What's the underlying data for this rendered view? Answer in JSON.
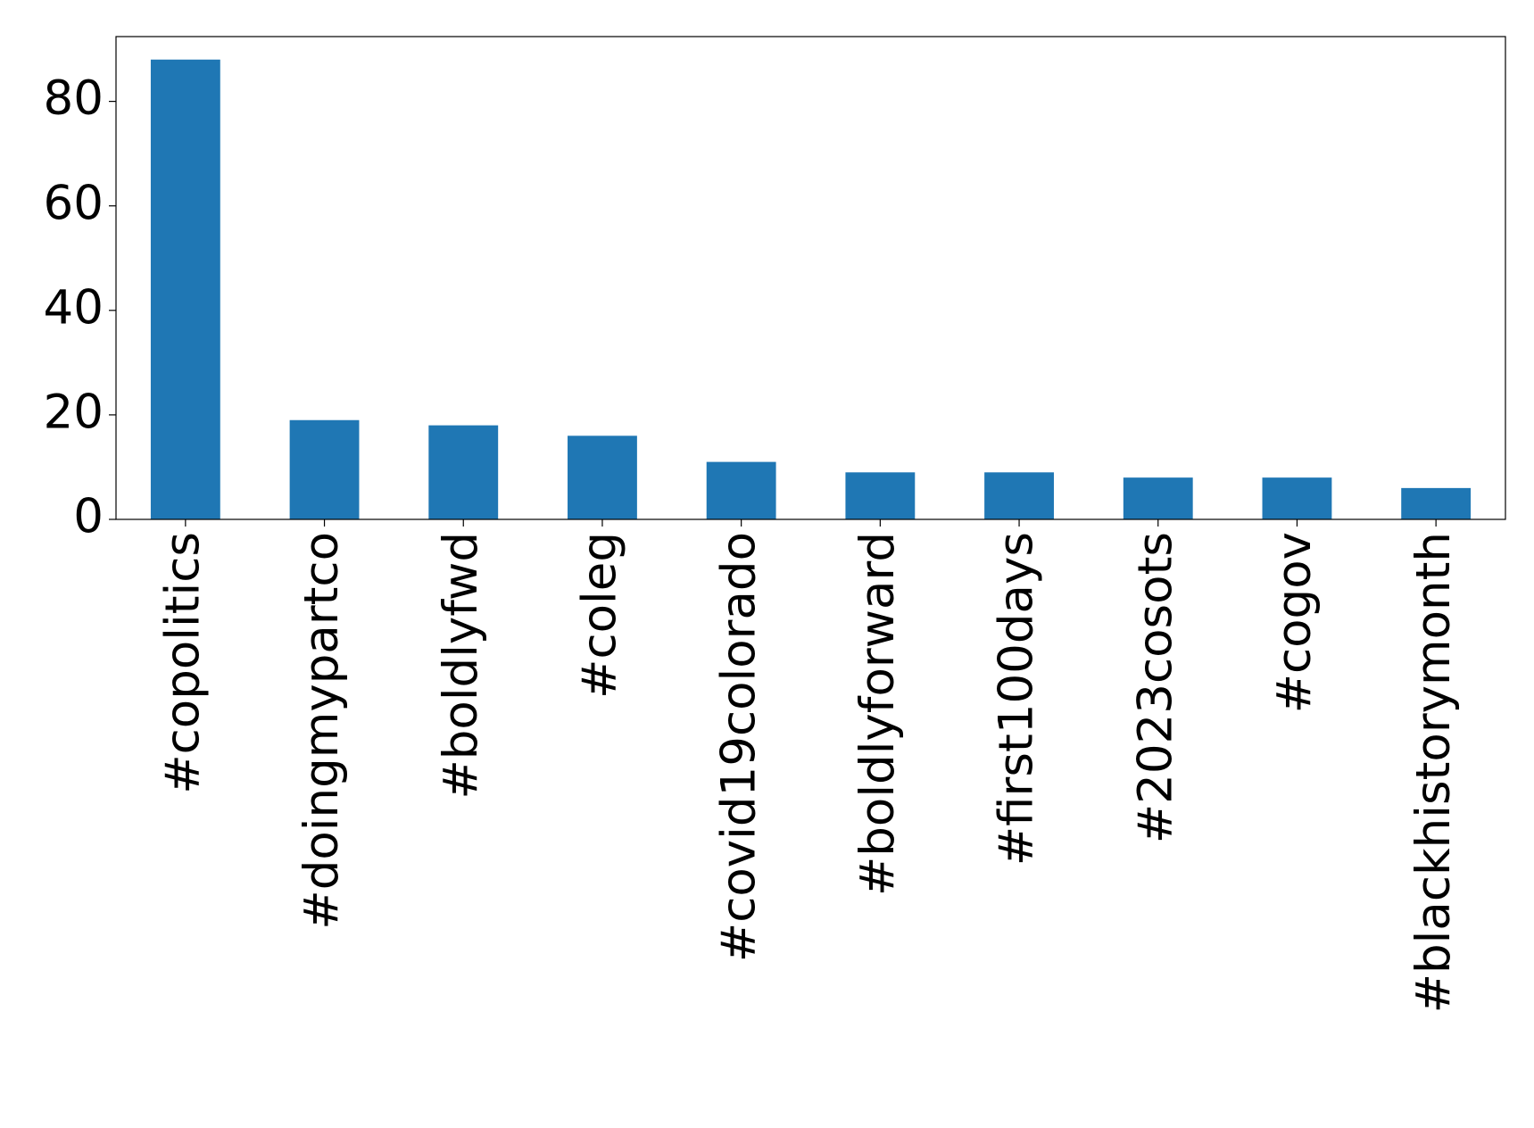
{
  "chart_data": {
    "type": "bar",
    "categories": [
      "#copolitics",
      "#doingmypartco",
      "#boldlyfwd",
      "#coleg",
      "#covid19colorado",
      "#boldlyforward",
      "#first100days",
      "#2023cosots",
      "#cogov",
      "#blackhistorymonth"
    ],
    "values": [
      88,
      19,
      18,
      16,
      11,
      9,
      9,
      8,
      8,
      6
    ],
    "color": "#1f77b4",
    "ylim": [
      0,
      92.4
    ],
    "yticks": [
      0,
      20,
      40,
      60,
      80
    ],
    "grid": false
  }
}
